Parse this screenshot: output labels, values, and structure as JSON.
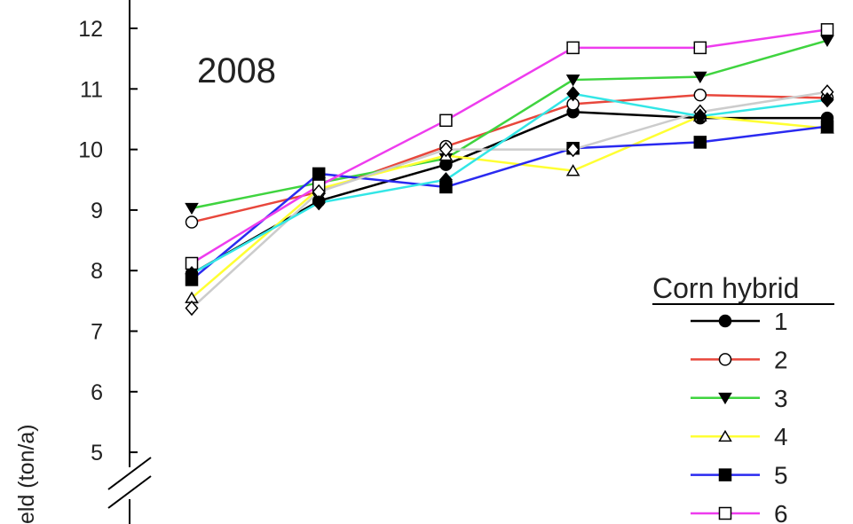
{
  "chart_data": {
    "type": "line",
    "annotation": "2008",
    "ylabel": "eld (ton/a)",
    "ylim": [
      4.2,
      12.45
    ],
    "y_ticks": [
      5,
      6,
      7,
      8,
      9,
      10,
      11,
      12
    ],
    "x_points": 6,
    "axis_break": true,
    "legend": {
      "title": "Corn hybrid",
      "position": "bottom-right"
    },
    "series": [
      {
        "name": "1",
        "color": "#000000",
        "marker": "circle-filled",
        "values": [
          7.95,
          9.15,
          9.75,
          10.62,
          10.52,
          10.52
        ]
      },
      {
        "name": "2",
        "color": "#e8473c",
        "marker": "circle-open",
        "values": [
          8.8,
          9.3,
          10.05,
          10.75,
          10.9,
          10.85
        ]
      },
      {
        "name": "3",
        "color": "#3fd43f",
        "marker": "triangle-down-filled",
        "values": [
          9.03,
          9.45,
          9.85,
          11.15,
          11.2,
          11.8
        ]
      },
      {
        "name": "4",
        "color": "#ffff33",
        "marker": "triangle-up-open",
        "values": [
          7.55,
          9.35,
          9.9,
          9.65,
          10.55,
          10.35
        ]
      },
      {
        "name": "5",
        "color": "#2a2af0",
        "marker": "square-filled",
        "values": [
          7.85,
          9.6,
          9.38,
          10.02,
          10.12,
          10.38
        ]
      },
      {
        "name": "6",
        "color": "#ee3cee",
        "marker": "square-open",
        "values": [
          8.12,
          9.4,
          10.48,
          11.68,
          11.68,
          11.98
        ]
      },
      {
        "name": "",
        "color": "#cccccc",
        "marker": "diamond-open",
        "values": [
          7.38,
          9.3,
          10.0,
          10.0,
          10.62,
          10.95
        ]
      },
      {
        "name": "",
        "color": "#33e6e6",
        "marker": "diamond-filled",
        "values": [
          7.95,
          9.12,
          9.5,
          10.92,
          10.55,
          10.82
        ]
      }
    ]
  }
}
